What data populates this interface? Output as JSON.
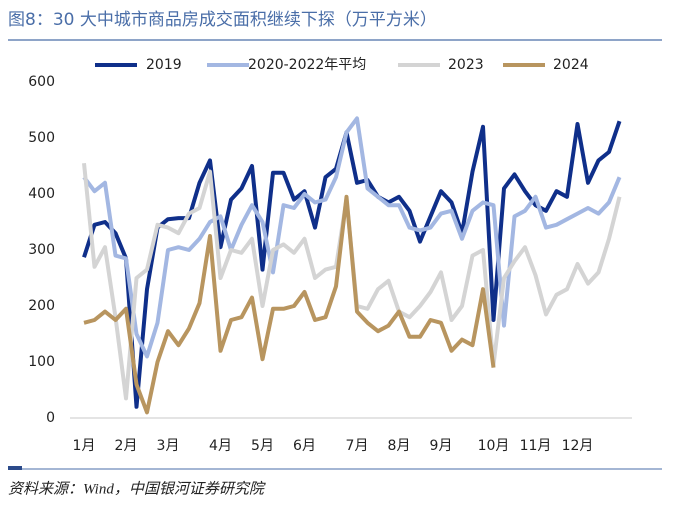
{
  "chart_data": {
    "type": "line",
    "title": "图8：30 大中城市商品房成交面积继续下探（万平方米）",
    "source": "资料来源：Wind，中国银河证券研究院",
    "categories": [
      "1月",
      null,
      null,
      null,
      "2月",
      null,
      null,
      null,
      "3月",
      null,
      null,
      null,
      null,
      "4月",
      null,
      null,
      null,
      "5月",
      null,
      null,
      null,
      "6月",
      null,
      null,
      null,
      null,
      "7月",
      null,
      null,
      null,
      "8月",
      null,
      null,
      null,
      "9月",
      null,
      null,
      null,
      null,
      "10月",
      null,
      null,
      null,
      "11月",
      null,
      null,
      null,
      "12月",
      null,
      null,
      null,
      null
    ],
    "series": [
      {
        "name": "2019",
        "color": "#0f2f8a",
        "values": [
          287,
          345,
          350,
          330,
          285,
          20,
          230,
          340,
          355,
          357,
          357,
          420,
          460,
          305,
          390,
          410,
          450,
          265,
          438,
          438,
          390,
          405,
          340,
          430,
          445,
          510,
          420,
          425,
          395,
          385,
          395,
          370,
          315,
          360,
          405,
          385,
          330,
          440,
          520,
          175,
          410,
          435,
          405,
          380,
          370,
          405,
          395,
          525,
          420,
          460,
          475,
          530
        ]
      },
      {
        "name": "2020-2022年平均",
        "color": "#a3b7e2",
        "values": [
          430,
          405,
          420,
          290,
          285,
          150,
          110,
          170,
          300,
          305,
          300,
          320,
          350,
          360,
          300,
          345,
          380,
          350,
          260,
          380,
          375,
          400,
          385,
          390,
          430,
          510,
          535,
          410,
          395,
          380,
          380,
          340,
          335,
          340,
          365,
          370,
          320,
          370,
          385,
          380,
          165,
          360,
          370,
          395,
          340,
          345,
          355,
          365,
          375,
          365,
          385,
          430
        ]
      },
      {
        "name": "2023",
        "color": "#d4d4d4",
        "values": [
          455,
          270,
          305,
          180,
          35,
          250,
          265,
          345,
          340,
          330,
          365,
          375,
          440,
          250,
          300,
          295,
          320,
          200,
          300,
          310,
          295,
          320,
          250,
          265,
          270,
          390,
          200,
          195,
          230,
          245,
          190,
          180,
          200,
          225,
          260,
          175,
          200,
          290,
          300,
          95,
          250,
          280,
          305,
          255,
          185,
          220,
          230,
          275,
          240,
          260,
          320,
          395
        ]
      },
      {
        "name": "2024",
        "color": "#b8955f",
        "values": [
          170,
          175,
          190,
          175,
          195,
          60,
          10,
          100,
          155,
          130,
          160,
          205,
          325,
          120,
          175,
          180,
          215,
          105,
          195,
          195,
          200,
          225,
          175,
          180,
          235,
          395,
          190,
          170,
          155,
          165,
          190,
          145,
          145,
          175,
          170,
          120,
          140,
          130,
          230,
          90,
          null,
          null,
          null,
          null,
          null,
          null,
          null,
          null,
          null,
          null,
          null,
          null
        ]
      }
    ],
    "ylim": [
      0,
      600
    ],
    "yticks": [
      0,
      100,
      200,
      300,
      400,
      500,
      600
    ],
    "grid": false
  }
}
